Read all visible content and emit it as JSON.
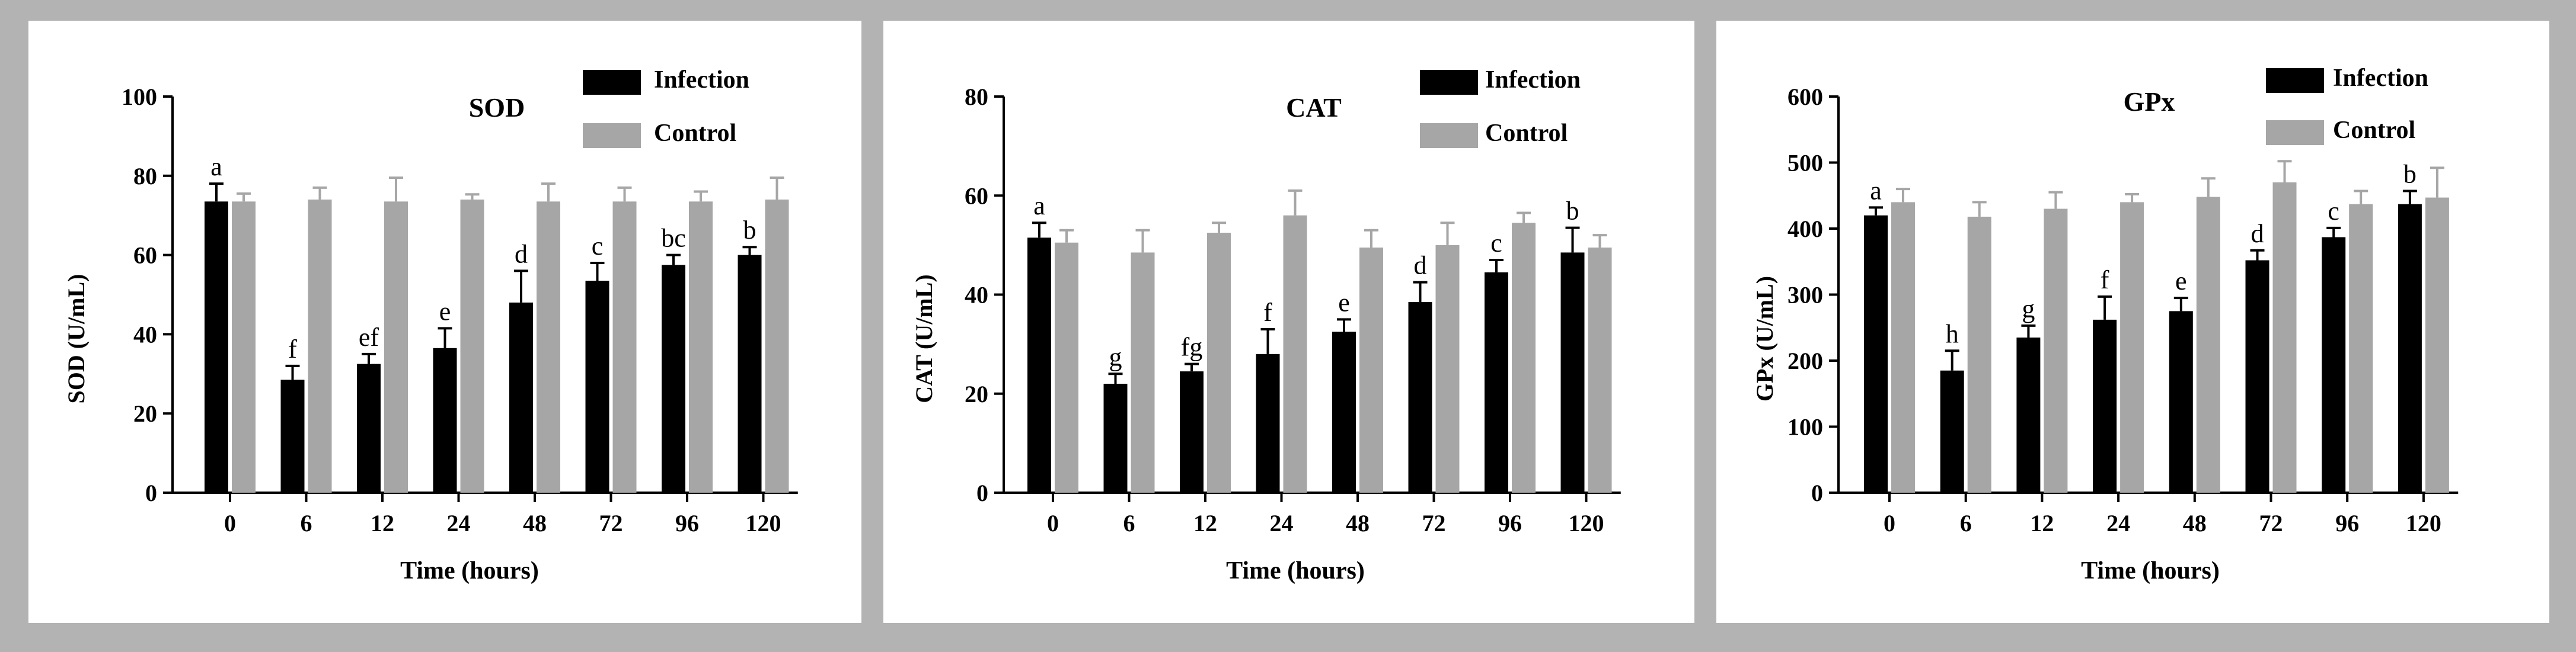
{
  "colors": {
    "frame": "#b3b3b3",
    "infection": "#000000",
    "control": "#a6a6a6",
    "axis": "#000000"
  },
  "chart_data": [
    {
      "type": "bar",
      "title": "SOD",
      "xlabel": "Time (hours)",
      "ylabel": "SOD (U/mL)",
      "categories": [
        "0",
        "6",
        "12",
        "24",
        "48",
        "72",
        "96",
        "120"
      ],
      "ylim": [
        0,
        100
      ],
      "yticks": [
        0,
        20,
        40,
        60,
        80,
        100
      ],
      "legend_position": "top-right",
      "series": [
        {
          "name": "Infection",
          "values": [
            73.5,
            28.5,
            32.5,
            36.5,
            48,
            53.5,
            57.5,
            60
          ],
          "errors": [
            4.5,
            3.5,
            2.5,
            5,
            8,
            4.5,
            2.5,
            2
          ],
          "letters": [
            "a",
            "f",
            "ef",
            "e",
            "d",
            "c",
            "bc",
            "b"
          ]
        },
        {
          "name": "Control",
          "values": [
            73.5,
            74,
            73.5,
            74,
            73.5,
            73.5,
            73.5,
            74
          ],
          "errors": [
            2,
            3,
            6,
            1.3,
            4.5,
            3.5,
            2.5,
            5.5
          ]
        }
      ]
    },
    {
      "type": "bar",
      "title": "CAT",
      "xlabel": "Time (hours)",
      "ylabel": "CAT (U/mL)",
      "categories": [
        "0",
        "6",
        "12",
        "24",
        "48",
        "72",
        "96",
        "120"
      ],
      "ylim": [
        0,
        80
      ],
      "yticks": [
        0,
        20,
        40,
        60,
        80
      ],
      "legend_position": "top-right",
      "series": [
        {
          "name": "Infection",
          "values": [
            51.5,
            22,
            24.5,
            28,
            32.5,
            38.5,
            44.5,
            48.5
          ],
          "errors": [
            3,
            2,
            1.5,
            5,
            2.5,
            4,
            2.5,
            5
          ],
          "letters": [
            "a",
            "g",
            "fg",
            "f",
            "e",
            "d",
            "c",
            "b"
          ]
        },
        {
          "name": "Control",
          "values": [
            50.5,
            48.5,
            52.5,
            56,
            49.5,
            50,
            54.5,
            49.5
          ],
          "errors": [
            2.5,
            4.5,
            2,
            5,
            3.5,
            4.5,
            2,
            2.5
          ]
        }
      ]
    },
    {
      "type": "bar",
      "title": "GPx",
      "xlabel": "Time (hours)",
      "ylabel": "GPx (U/mL)",
      "categories": [
        "0",
        "6",
        "12",
        "24",
        "48",
        "72",
        "96",
        "120"
      ],
      "ylim": [
        0,
        600
      ],
      "yticks": [
        0,
        100,
        200,
        300,
        400,
        500,
        600
      ],
      "legend_position": "top-right",
      "series": [
        {
          "name": "Infection",
          "values": [
            420,
            185,
            235,
            262,
            275,
            352,
            387,
            437
          ],
          "errors": [
            12,
            30,
            18,
            35,
            20,
            15,
            14,
            20
          ],
          "letters": [
            "a",
            "h",
            "g",
            "f",
            "e",
            "d",
            "c",
            "b"
          ]
        },
        {
          "name": "Control",
          "values": [
            440,
            418,
            430,
            440,
            448,
            470,
            437,
            447
          ],
          "errors": [
            20,
            22,
            25,
            12,
            28,
            32,
            20,
            45
          ]
        }
      ]
    }
  ]
}
